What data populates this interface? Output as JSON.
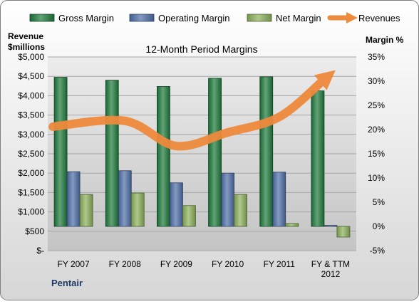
{
  "chart_data": {
    "type": "bar",
    "title": "12-Month Period Margins",
    "company": "Pentair",
    "left_axis_title": [
      "Revenue",
      "$millions"
    ],
    "right_axis_title": "Margin %",
    "categories": [
      [
        "FY 2007"
      ],
      [
        "FY 2008"
      ],
      [
        "FY 2009"
      ],
      [
        "FY 2010"
      ],
      [
        "FY 2011"
      ],
      [
        "FY & TTM",
        "2012"
      ]
    ],
    "left_ticks": [
      "$-",
      "$500",
      "$1,000",
      "$1,500",
      "$2,000",
      "$2,500",
      "$3,000",
      "$3,500",
      "$4,000",
      "$4,500",
      "$5,000"
    ],
    "right_ticks": [
      "-5%",
      "0%",
      "5%",
      "10%",
      "15%",
      "20%",
      "25%",
      "30%",
      "35%"
    ],
    "left_ylim": [
      0,
      5000
    ],
    "right_ylim": [
      -5,
      35
    ],
    "series": [
      {
        "name": "Gross Margin",
        "axis": "right",
        "kind": "bar",
        "color": "#1f7a3c",
        "values": [
          30.8,
          30.2,
          28.9,
          30.6,
          30.9,
          28.0
        ]
      },
      {
        "name": "Operating Margin",
        "axis": "right",
        "kind": "bar",
        "color": "#4f6ea8",
        "values": [
          11.3,
          11.5,
          9.0,
          11.0,
          11.2,
          0.2
        ]
      },
      {
        "name": "Net Margin",
        "axis": "right",
        "kind": "bar",
        "color": "#8cb05a",
        "values": [
          6.6,
          6.9,
          4.3,
          6.6,
          0.6,
          -2.2
        ]
      },
      {
        "name": "Revenues",
        "axis": "left",
        "kind": "line",
        "color": "#ee8a3c",
        "values": [
          3200,
          3350,
          2700,
          3050,
          3450,
          4400
        ]
      }
    ],
    "legend_position": "top",
    "grid": true,
    "plot_background": "#d4d4d4"
  }
}
